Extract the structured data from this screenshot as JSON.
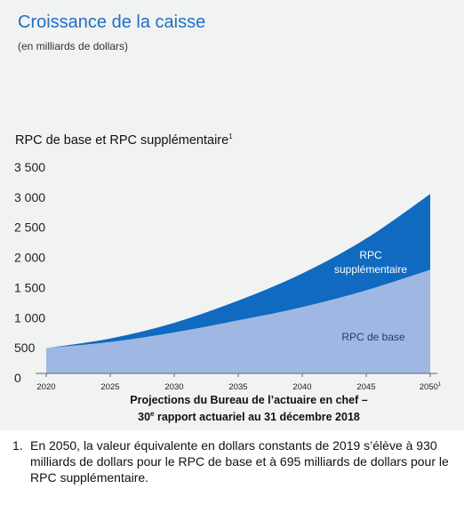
{
  "header": {
    "title": "Croissance de la caisse",
    "subtitle": "(en milliards de dollars)"
  },
  "chart_title": {
    "text": "RPC de base et RPC supplémentaire",
    "note_marker": "1"
  },
  "caption": {
    "line1": "Projections du Bureau de l’actuaire en chef –",
    "line2_prefix": "30",
    "line2_sup": "e",
    "line2_suffix": " rapport actuariel au 31 décembre 2018"
  },
  "footnote": {
    "number": "1.",
    "text": "En 2050, la valeur équivalente en dollars constants de 2019 s’élève à 930 milliards de dollars pour le RPC de base et à 695 milliards de dollars pour le RPC supplémentaire."
  },
  "colors": {
    "base": "#9fb8e3",
    "supplementary": "#0f6ac0",
    "title": "#1f6fc5",
    "panel": "#f1f2f2"
  },
  "chart_data": {
    "type": "area",
    "stacked": true,
    "xlim": [
      2020,
      2050
    ],
    "ylim": [
      0,
      3500
    ],
    "x_ticks": [
      "2020",
      "2025",
      "2030",
      "2035",
      "2040",
      "2045",
      "2050"
    ],
    "last_tick_marker": "1",
    "y_ticks": [
      "3 500",
      "3 000",
      "2 500",
      "2 000",
      "1 500",
      "1 000",
      "500",
      "0"
    ],
    "x": [
      2020,
      2025,
      2030,
      2035,
      2040,
      2045,
      2050
    ],
    "series": [
      {
        "name": "RPC de base",
        "values": [
          420,
          520,
          680,
          880,
          1100,
          1380,
          1720
        ]
      },
      {
        "name": "RPC supplémentaire",
        "values": [
          0,
          60,
          160,
          330,
          560,
          860,
          1260
        ]
      }
    ],
    "grid": false,
    "legend": "inline labels"
  }
}
